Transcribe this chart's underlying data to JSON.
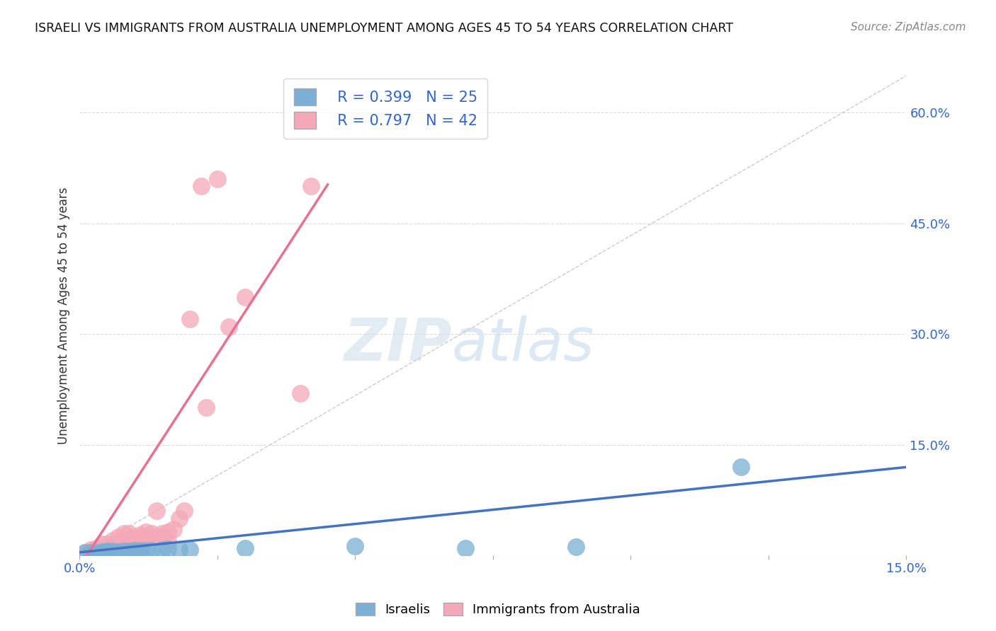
{
  "title": "ISRAELI VS IMMIGRANTS FROM AUSTRALIA UNEMPLOYMENT AMONG AGES 45 TO 54 YEARS CORRELATION CHART",
  "source": "Source: ZipAtlas.com",
  "ylabel": "Unemployment Among Ages 45 to 54 years",
  "xlim": [
    0.0,
    0.15
  ],
  "ylim": [
    0.0,
    0.65
  ],
  "israelis_x": [
    0.001,
    0.002,
    0.003,
    0.004,
    0.004,
    0.005,
    0.005,
    0.006,
    0.007,
    0.008,
    0.009,
    0.01,
    0.01,
    0.011,
    0.012,
    0.013,
    0.015,
    0.016,
    0.018,
    0.02,
    0.03,
    0.05,
    0.07,
    0.09,
    0.12
  ],
  "israelis_y": [
    0.004,
    0.004,
    0.004,
    0.005,
    0.003,
    0.005,
    0.006,
    0.006,
    0.005,
    0.006,
    0.006,
    0.005,
    0.007,
    0.007,
    0.007,
    0.007,
    0.008,
    0.009,
    0.008,
    0.008,
    0.01,
    0.012,
    0.01,
    0.011,
    0.12
  ],
  "australia_x": [
    0.001,
    0.002,
    0.002,
    0.003,
    0.003,
    0.004,
    0.004,
    0.005,
    0.005,
    0.005,
    0.006,
    0.006,
    0.007,
    0.007,
    0.008,
    0.008,
    0.009,
    0.009,
    0.01,
    0.01,
    0.011,
    0.011,
    0.012,
    0.012,
    0.013,
    0.013,
    0.014,
    0.015,
    0.015,
    0.016,
    0.016,
    0.017,
    0.018,
    0.019,
    0.02,
    0.022,
    0.023,
    0.025,
    0.027,
    0.03,
    0.04,
    0.042
  ],
  "australia_y": [
    0.004,
    0.005,
    0.008,
    0.006,
    0.01,
    0.008,
    0.015,
    0.01,
    0.015,
    0.005,
    0.012,
    0.02,
    0.015,
    0.025,
    0.02,
    0.03,
    0.022,
    0.03,
    0.025,
    0.01,
    0.028,
    0.02,
    0.025,
    0.032,
    0.025,
    0.03,
    0.06,
    0.025,
    0.03,
    0.032,
    0.02,
    0.035,
    0.05,
    0.06,
    0.32,
    0.5,
    0.2,
    0.51,
    0.31,
    0.35,
    0.22,
    0.5
  ],
  "israelis_color": "#7BAFD4",
  "australians_color": "#F4A8B8",
  "israelis_line_color": "#4472C4",
  "australians_line_color": "#E87090",
  "israelis_R": "R = 0.399",
  "israelis_N": "N = 25",
  "australians_R": "R = 0.797",
  "australians_N": "N = 42",
  "background_color": "#FFFFFF",
  "grid_color": "#DDDDDD",
  "diag_color": "#CCCCCC"
}
